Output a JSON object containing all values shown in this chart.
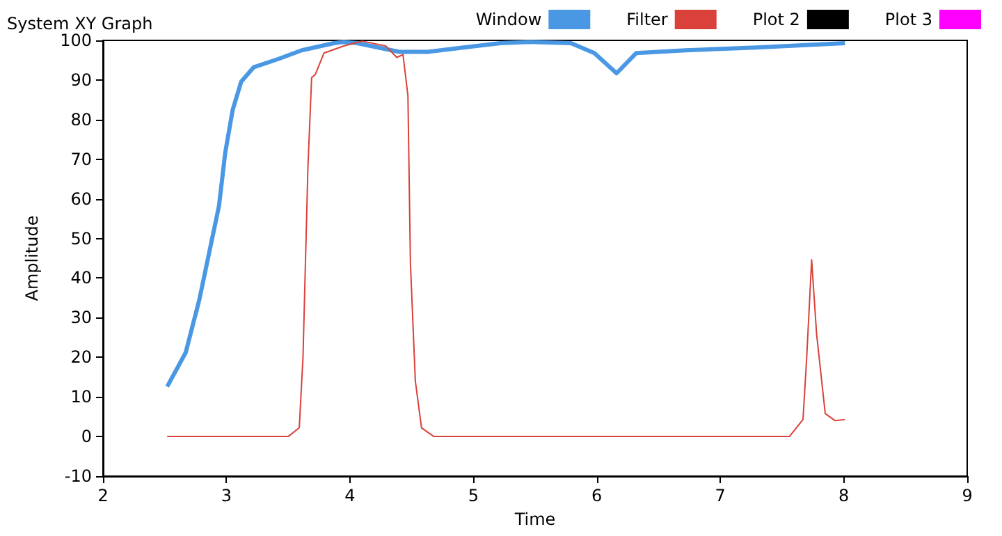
{
  "chart_data": {
    "type": "line",
    "title": "System XY Graph",
    "xlabel": "Time",
    "ylabel": "Amplitude",
    "xlim": [
      2,
      9
    ],
    "xticks": [
      2,
      3,
      4,
      5,
      6,
      7,
      8,
      9
    ],
    "ylim": [
      -10,
      100
    ],
    "yticks": [
      -10,
      0,
      10,
      20,
      30,
      40,
      50,
      60,
      70,
      80,
      90,
      100
    ],
    "grid": false,
    "legend": "top right",
    "marker": "none",
    "line_style": "solid",
    "series": [
      {
        "name": "Window",
        "color": "#4a98e3",
        "x": [
          2.52,
          2.67,
          2.78,
          2.86,
          2.94,
          2.99,
          3.05,
          3.12,
          3.22,
          3.42,
          3.61,
          3.87,
          3.95,
          4.06,
          4.4,
          4.63,
          4.92,
          5.22,
          5.45,
          5.79,
          5.98,
          6.16,
          6.32,
          6.72,
          7.29,
          8.01
        ],
        "values": [
          12.6,
          21.2,
          34.5,
          46.4,
          58.3,
          71.6,
          82.4,
          89.6,
          93.2,
          95.3,
          97.5,
          99.3,
          99.6,
          99.3,
          97.1,
          97.1,
          98.2,
          99.3,
          99.6,
          99.3,
          96.8,
          91.7,
          96.8,
          97.5,
          98.2,
          99.3
        ]
      },
      {
        "name": "Filter",
        "color": "#d9413a",
        "x": [
          2.52,
          3.5,
          3.59,
          3.62,
          3.66,
          3.69,
          3.72,
          3.79,
          3.95,
          4.1,
          4.29,
          4.38,
          4.43,
          4.47,
          4.49,
          4.53,
          4.58,
          4.68,
          7.56,
          7.67,
          7.7,
          7.74,
          7.78,
          7.85,
          7.93,
          8.01
        ],
        "values": [
          0,
          0,
          2.2,
          20,
          68,
          90.6,
          91.4,
          96.8,
          98.6,
          99.8,
          98.6,
          95.7,
          96.4,
          86,
          43.9,
          14,
          2.2,
          0,
          0,
          4.3,
          20,
          44.6,
          25.9,
          5.8,
          4,
          4.3
        ]
      },
      {
        "name": "Plot 2",
        "color": "#000000"
      },
      {
        "name": "Plot 3",
        "color": "#ff00ff"
      }
    ]
  }
}
